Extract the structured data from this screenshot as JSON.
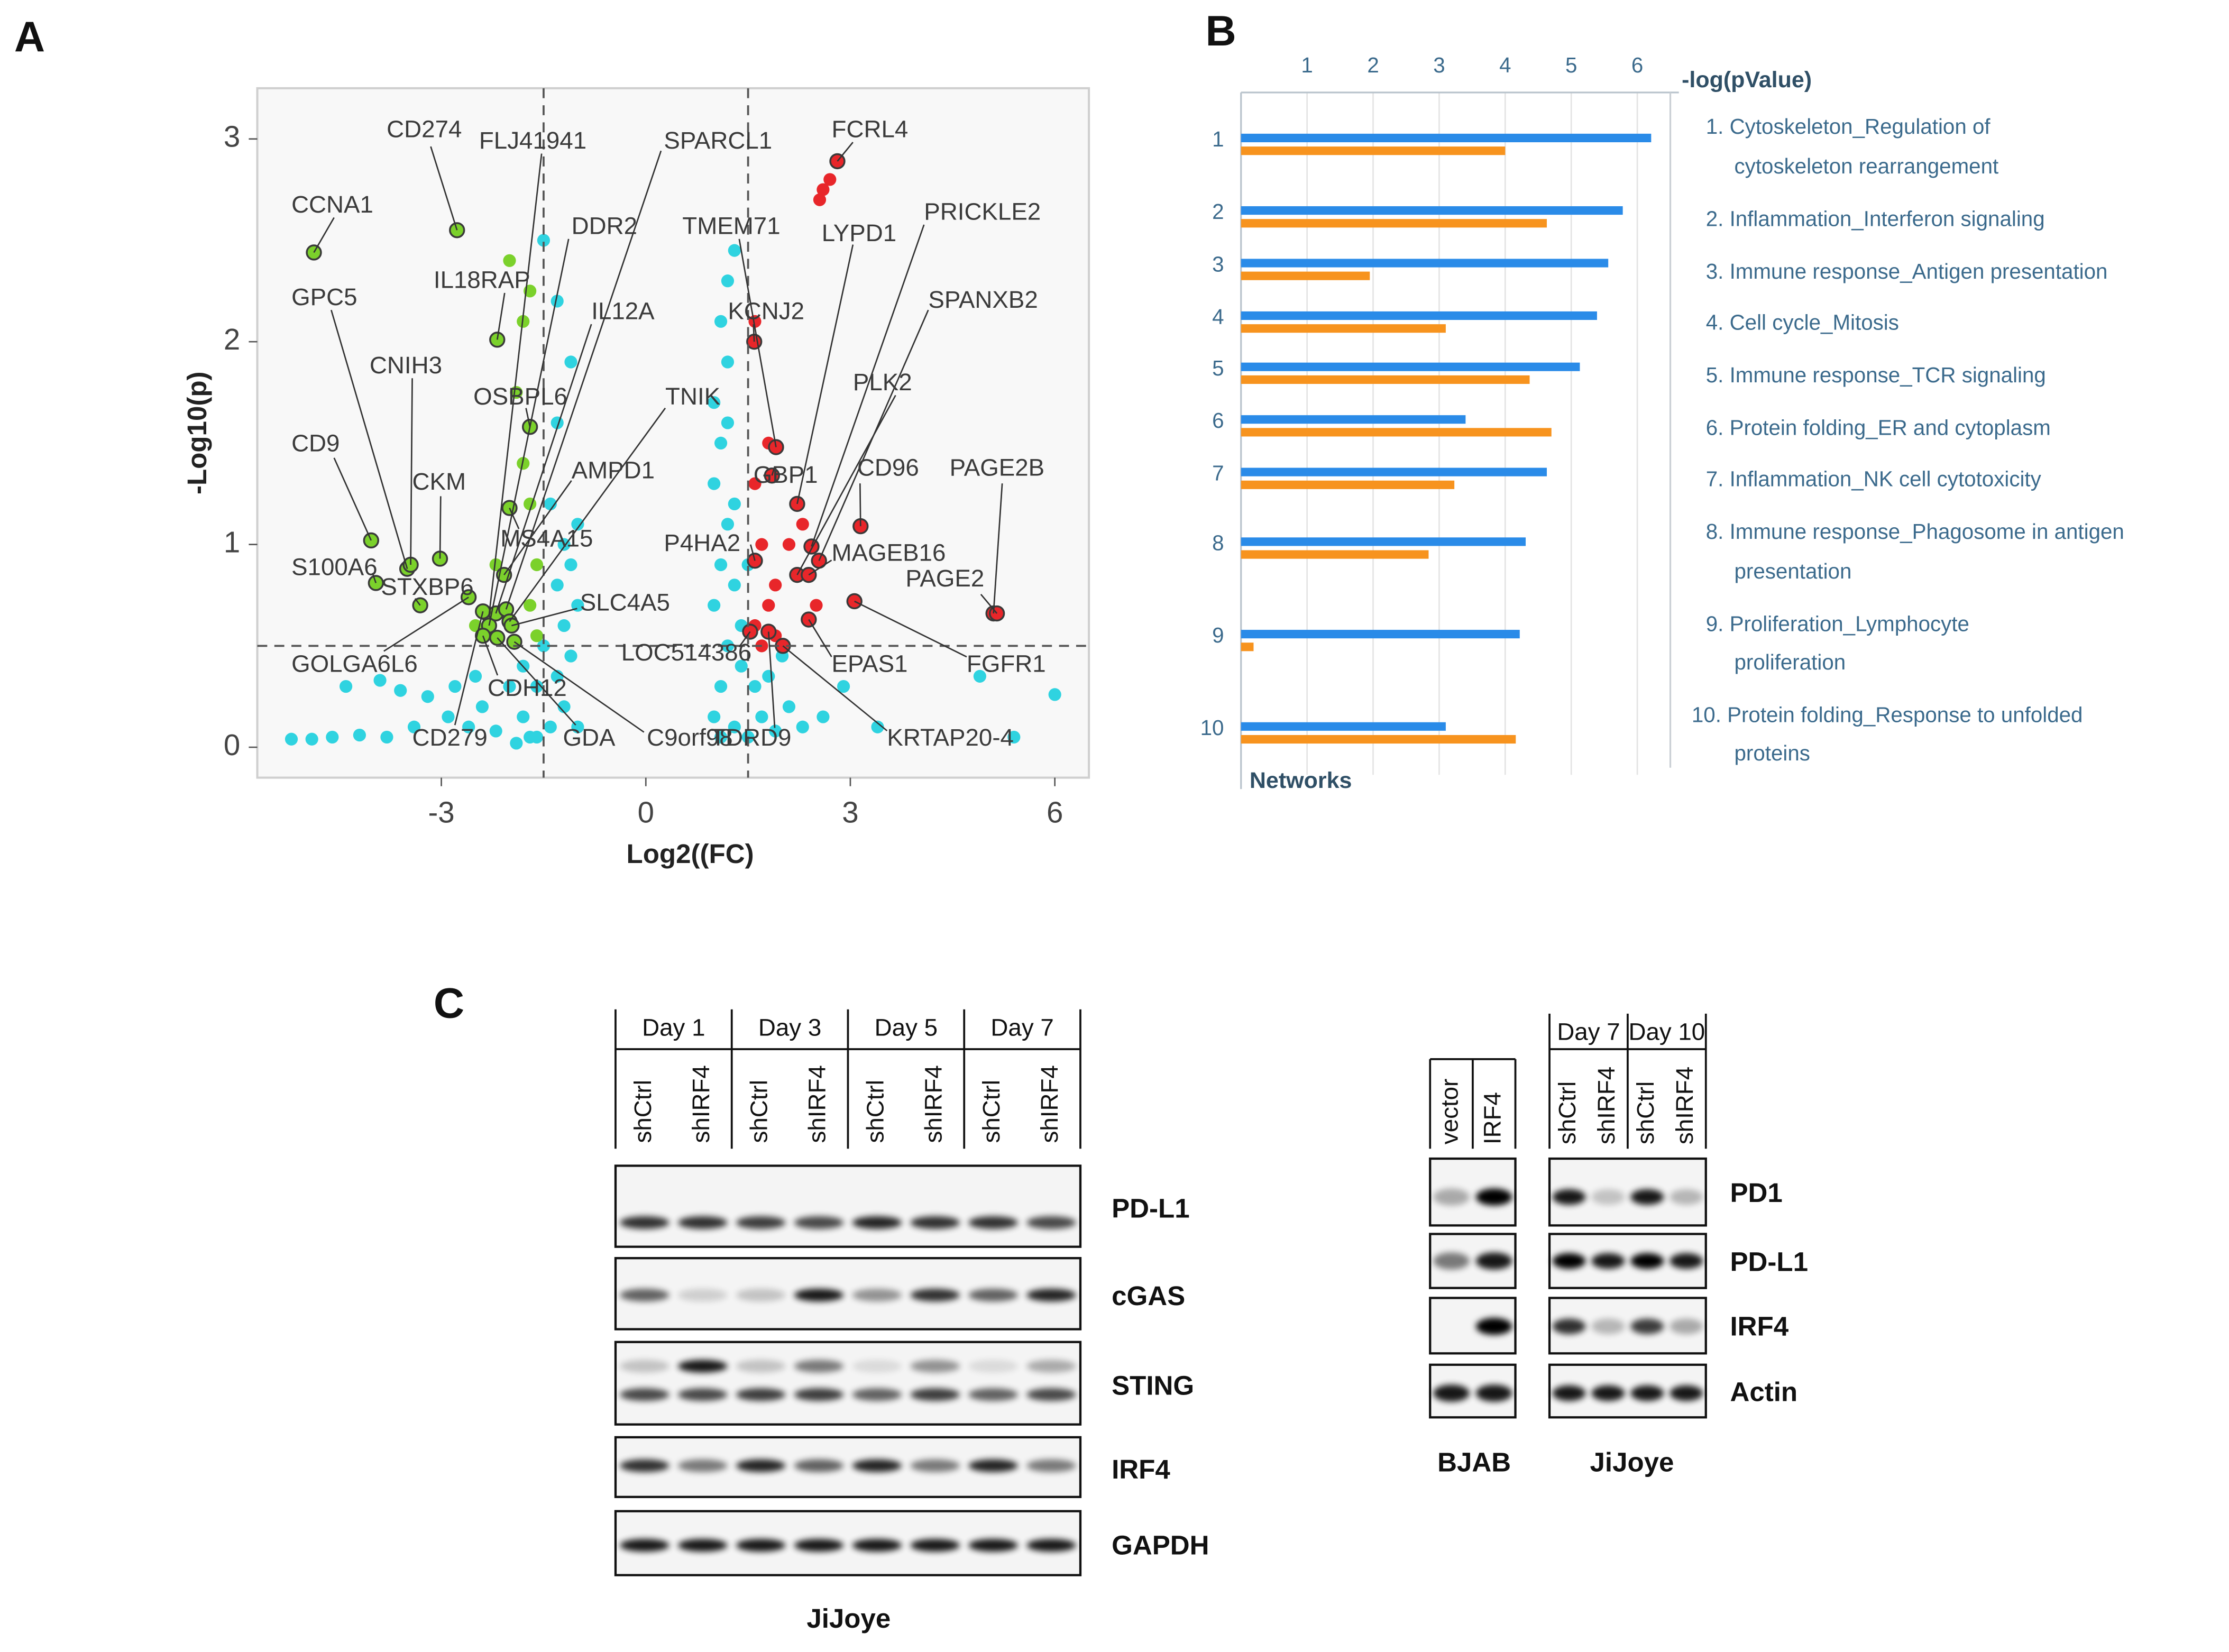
{
  "panel_labels": [
    "A",
    "B",
    "C"
  ],
  "chart_data": [
    {
      "type": "scatter",
      "xlabel": "Log2((FC)",
      "ylabel": "-Log10(p)",
      "xlim": [
        -5.7,
        6.5
      ],
      "ylim": [
        -0.15,
        3.25
      ],
      "xticks": [
        -3,
        0,
        3,
        6
      ],
      "yticks": [
        0,
        1,
        2,
        3
      ],
      "vlines": [
        -1.5,
        1.5
      ],
      "hlines": [
        0.5
      ],
      "series": [
        {
          "color": "#2fd3e0",
          "x": [
            -5.2,
            -4.9,
            -4.6,
            -4.2,
            -3.8,
            -3.4,
            -4.4,
            -3.9,
            -3.2,
            -2.9,
            -2.6,
            -2.4,
            -2.2,
            -2.0,
            -1.8,
            -1.6,
            -1.4,
            -1.2,
            -1.0,
            -1.3,
            -1.1,
            -1.5,
            -1.2,
            -1.0,
            -1.3,
            -1.1,
            -1.2,
            -1.0,
            -1.4,
            -1.3,
            -1.1,
            -1.3,
            -1.5,
            -1.6,
            -1.8,
            -2.5,
            -2.8,
            -3.6,
            -1.7,
            -1.9,
            1.1,
            1.3,
            1.5,
            1.7,
            1.9,
            2.1,
            2.3,
            2.6,
            2.9,
            1.1,
            1.2,
            1.0,
            1.1,
            1.2,
            1.0,
            1.1,
            1.0,
            1.2,
            1.1,
            1.2,
            1.3,
            1.3,
            1.4,
            1.4,
            1.6,
            1.8,
            2.0,
            1.3,
            1.2,
            4.9,
            6.0,
            5.4,
            3.4,
            1.0,
            1.5
          ],
          "y": [
            0.04,
            0.04,
            0.05,
            0.06,
            0.05,
            0.1,
            0.3,
            0.33,
            0.25,
            0.15,
            0.1,
            0.2,
            0.08,
            0.3,
            0.15,
            0.05,
            0.1,
            0.2,
            0.1,
            0.35,
            0.45,
            0.5,
            0.6,
            0.7,
            0.8,
            0.9,
            1.0,
            1.1,
            1.2,
            1.6,
            1.9,
            2.2,
            2.5,
            0.3,
            0.4,
            0.35,
            0.3,
            0.28,
            0.05,
            0.02,
            0.05,
            0.1,
            0.05,
            0.15,
            0.08,
            0.2,
            0.1,
            0.15,
            0.3,
            0.3,
            0.5,
            0.7,
            0.9,
            1.1,
            1.3,
            1.5,
            1.7,
            1.9,
            2.1,
            2.3,
            2.45,
            0.8,
            0.6,
            0.4,
            0.3,
            0.35,
            0.45,
            1.2,
            1.6,
            0.35,
            0.26,
            0.05,
            0.1,
            0.15,
            0.9
          ]
        },
        {
          "color": "#7bd12b",
          "x": [
            -2.0,
            -1.8,
            -1.7,
            -1.8,
            -1.6,
            -1.7,
            -1.6,
            -2.2,
            -2.5,
            -1.7,
            -1.9
          ],
          "y": [
            2.4,
            2.1,
            1.2,
            1.4,
            0.9,
            0.7,
            0.55,
            0.9,
            0.6,
            2.25,
            1.75
          ]
        },
        {
          "color": "#e8262a",
          "x": [
            2.6,
            2.7,
            2.55,
            1.6,
            1.8,
            1.6,
            1.7,
            1.9,
            2.1,
            1.8,
            1.6,
            1.7,
            2.3,
            2.5,
            1.9
          ],
          "y": [
            2.75,
            2.8,
            2.7,
            2.1,
            1.5,
            1.3,
            1.0,
            0.8,
            1.0,
            0.7,
            0.6,
            0.5,
            1.1,
            0.7,
            0.55
          ]
        },
        {
          "color": "#7bd12b",
          "edgecolor": "#3a3a3a",
          "labels": [
            "CD274",
            "FLJ41941",
            "CCNA1",
            "GPC5",
            "CNIH3",
            "CD9",
            "CKM",
            "S100A6",
            "STXBP6",
            "GOLGA6L6",
            "IL18RAP",
            "DDR2",
            "IL12A",
            "OSBPL6",
            "SPARCL1",
            "TNIK",
            "AMPD1",
            "MS4A15",
            "SLC4A5",
            "CDH12",
            "CD279",
            "GDA",
            "C9orf98"
          ],
          "x": [
            -2.77,
            -2.3,
            -4.87,
            -3.5,
            -3.45,
            -4.03,
            -3.02,
            -3.96,
            -3.31,
            -2.6,
            -2.18,
            -2.3,
            -2.2,
            -1.7,
            -2.05,
            -2.0,
            -2.08,
            -2.0,
            -1.97,
            -2.39,
            -2.39,
            -2.18,
            -1.93
          ],
          "y": [
            2.55,
            0.65,
            2.44,
            0.88,
            0.9,
            1.02,
            0.93,
            0.81,
            0.7,
            0.74,
            2.01,
            0.6,
            0.66,
            1.58,
            0.68,
            0.62,
            0.85,
            1.18,
            0.6,
            0.55,
            0.67,
            0.54,
            0.52
          ]
        },
        {
          "color": "#e8262a",
          "edgecolor": "#3a3a3a",
          "labels": [
            "FCRL4",
            "TMEM71",
            "LYPD1",
            "PRICKLE2",
            "KCNJ2",
            "SPANXB2",
            "PLK2",
            "GBP1",
            "CD96",
            "PAGE2B",
            "P4HA2",
            "MAGEB16",
            "PAGE2",
            "LOC514386",
            "EPAS1",
            "FGFR1",
            "TDRD9",
            "KRTAP20-4"
          ],
          "x": [
            2.81,
            1.91,
            2.22,
            2.43,
            1.59,
            2.54,
            2.22,
            1.85,
            3.15,
            5.1,
            1.6,
            2.39,
            5.15,
            1.53,
            2.39,
            3.06,
            1.8,
            2.01
          ],
          "y": [
            2.89,
            1.48,
            1.2,
            0.99,
            2.0,
            0.92,
            0.85,
            1.34,
            1.09,
            0.66,
            0.92,
            0.85,
            0.66,
            0.57,
            0.63,
            0.72,
            0.57,
            0.5
          ]
        }
      ]
    },
    {
      "type": "barh",
      "xlabel": "-log(pValue)",
      "ylabel": "Networks",
      "categories": [
        "1",
        "2",
        "3",
        "4",
        "5",
        "6",
        "7",
        "8",
        "9",
        "10"
      ],
      "network_names": [
        [
          "1. Cytoskeleton_Regulation of",
          "cytoskeleton rearrangement"
        ],
        [
          "2. Inflammation_Interferon signaling"
        ],
        [
          "3. Immune response_Antigen presentation"
        ],
        [
          "4. Cell cycle_Mitosis"
        ],
        [
          "5. Immune response_TCR signaling"
        ],
        [
          "6. Protein folding_ER and cytoplasm"
        ],
        [
          "7. Inflammation_NK cell cytotoxicity"
        ],
        [
          "8. Immune response_Phagosome in antigen",
          "presentation"
        ],
        [
          "9. Proliferation_Lymphocyte",
          "proliferation"
        ],
        [
          "10. Protein folding_Response to unfolded",
          "proteins"
        ]
      ],
      "xlim": [
        0,
        6.5
      ],
      "xticks": [
        1,
        2,
        3,
        4,
        5,
        6
      ],
      "grid": true,
      "series": [
        {
          "color": "#2a8be8",
          "values": [
            6.21,
            5.78,
            5.56,
            5.39,
            5.13,
            3.4,
            4.63,
            4.31,
            4.22,
            3.1
          ]
        },
        {
          "color": "#f7931e",
          "values": [
            4.0,
            4.63,
            1.95,
            3.1,
            4.37,
            4.7,
            3.23,
            2.84,
            0.19,
            4.16
          ]
        }
      ]
    }
  ],
  "western_blot": {
    "left": {
      "timepoints": [
        "Day 1",
        "Day 3",
        "Day 5",
        "Day 7"
      ],
      "lanes": [
        "shCtrl",
        "shIRF4",
        "shCtrl",
        "shIRF4",
        "shCtrl",
        "shIRF4",
        "shCtrl",
        "shIRF4"
      ],
      "proteins": [
        "PD-L1",
        "cGAS",
        "STING",
        "IRF4",
        "GAPDH"
      ],
      "cell_line": "JiJoye"
    },
    "right": {
      "bjab_lanes": [
        "vector",
        "IRF4"
      ],
      "jijoye_days": [
        "Day 7",
        "Day 10"
      ],
      "jijoye_lanes": [
        "shCtrl",
        "shIRF4",
        "shCtrl",
        "shIRF4"
      ],
      "proteins": [
        "PD1",
        "PD-L1",
        "IRF4",
        "Actin"
      ],
      "cell_lines": [
        "BJAB",
        "JiJoye"
      ]
    }
  }
}
